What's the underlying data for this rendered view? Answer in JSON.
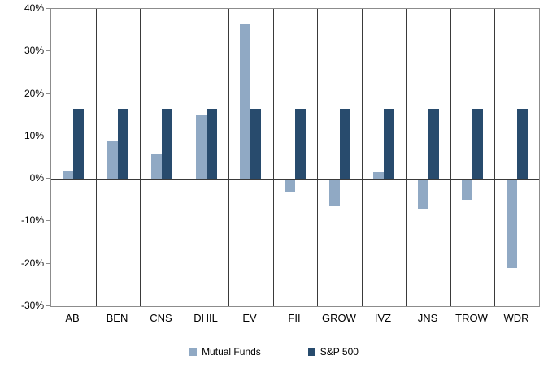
{
  "chart_data": {
    "type": "bar",
    "title": "",
    "xlabel": "",
    "ylabel": "",
    "categories": [
      "AB",
      "BEN",
      "CNS",
      "DHIL",
      "EV",
      "FII",
      "GROW",
      "IVZ",
      "JNS",
      "TROW",
      "WDR"
    ],
    "series": [
      {
        "name": "Mutual Funds",
        "color": "#90a9c4",
        "values": [
          2,
          9,
          6,
          15,
          36.5,
          -3,
          -6.5,
          1.5,
          -7,
          -5,
          -21
        ]
      },
      {
        "name": "S&P 500",
        "color": "#284b6d",
        "values": [
          16.5,
          16.5,
          16.5,
          16.5,
          16.5,
          16.5,
          16.5,
          16.5,
          16.5,
          16.5,
          16.5
        ]
      }
    ],
    "ylim": [
      -30,
      40
    ],
    "yticks": [
      {
        "value": 40,
        "label": "40%"
      },
      {
        "value": 30,
        "label": "30%"
      },
      {
        "value": 20,
        "label": "20%"
      },
      {
        "value": 10,
        "label": "10%"
      },
      {
        "value": 0,
        "label": "0%"
      },
      {
        "value": -10,
        "label": "-10%"
      },
      {
        "value": -20,
        "label": "-20%"
      },
      {
        "value": -30,
        "label": "-30%"
      }
    ],
    "grid": "vertical-category-dividers",
    "legend_position": "bottom"
  }
}
